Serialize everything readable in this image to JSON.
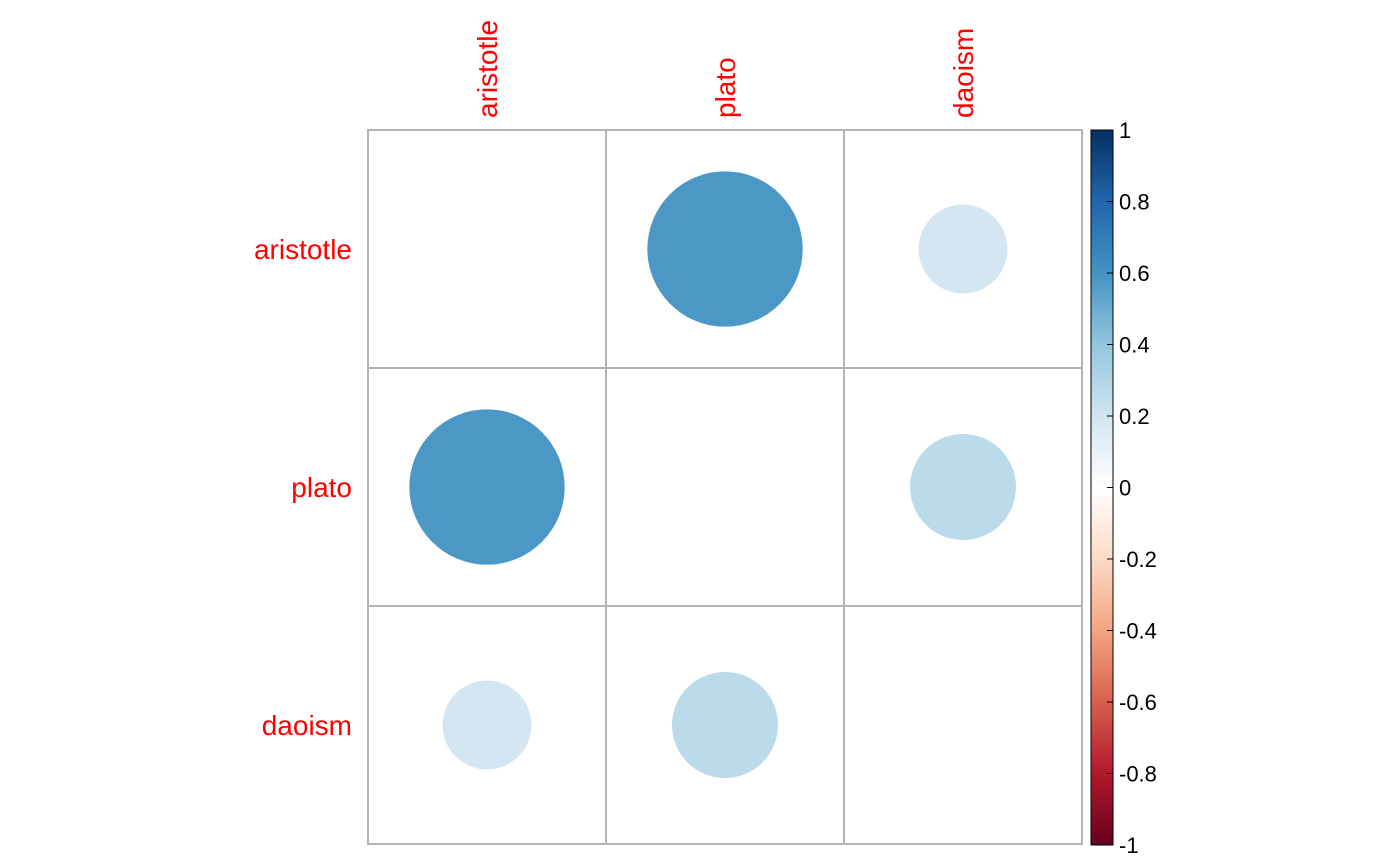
{
  "chart_data": {
    "type": "heatmap",
    "variables": [
      "aristotle",
      "plato",
      "daoism"
    ],
    "matrix": [
      [
        null,
        0.58,
        0.19
      ],
      [
        0.58,
        null,
        0.27
      ],
      [
        0.19,
        0.27,
        null
      ]
    ],
    "diagonal_shown": false,
    "colorbar": {
      "min": -1,
      "max": 1,
      "ticks": [
        "1",
        "0.8",
        "0.6",
        "0.4",
        "0.2",
        "0",
        "-0.2",
        "-0.4",
        "-0.6",
        "-0.8",
        "-1"
      ],
      "colors": [
        "#67001f",
        "#b2182b",
        "#d6604d",
        "#f4a582",
        "#fddbc7",
        "#ffffff",
        "#d1e5f0",
        "#92c5de",
        "#4393c3",
        "#2166ac",
        "#053061"
      ]
    },
    "label_color": "#ff0000",
    "grid_color": "#b3b3b3",
    "marker": "circle"
  }
}
